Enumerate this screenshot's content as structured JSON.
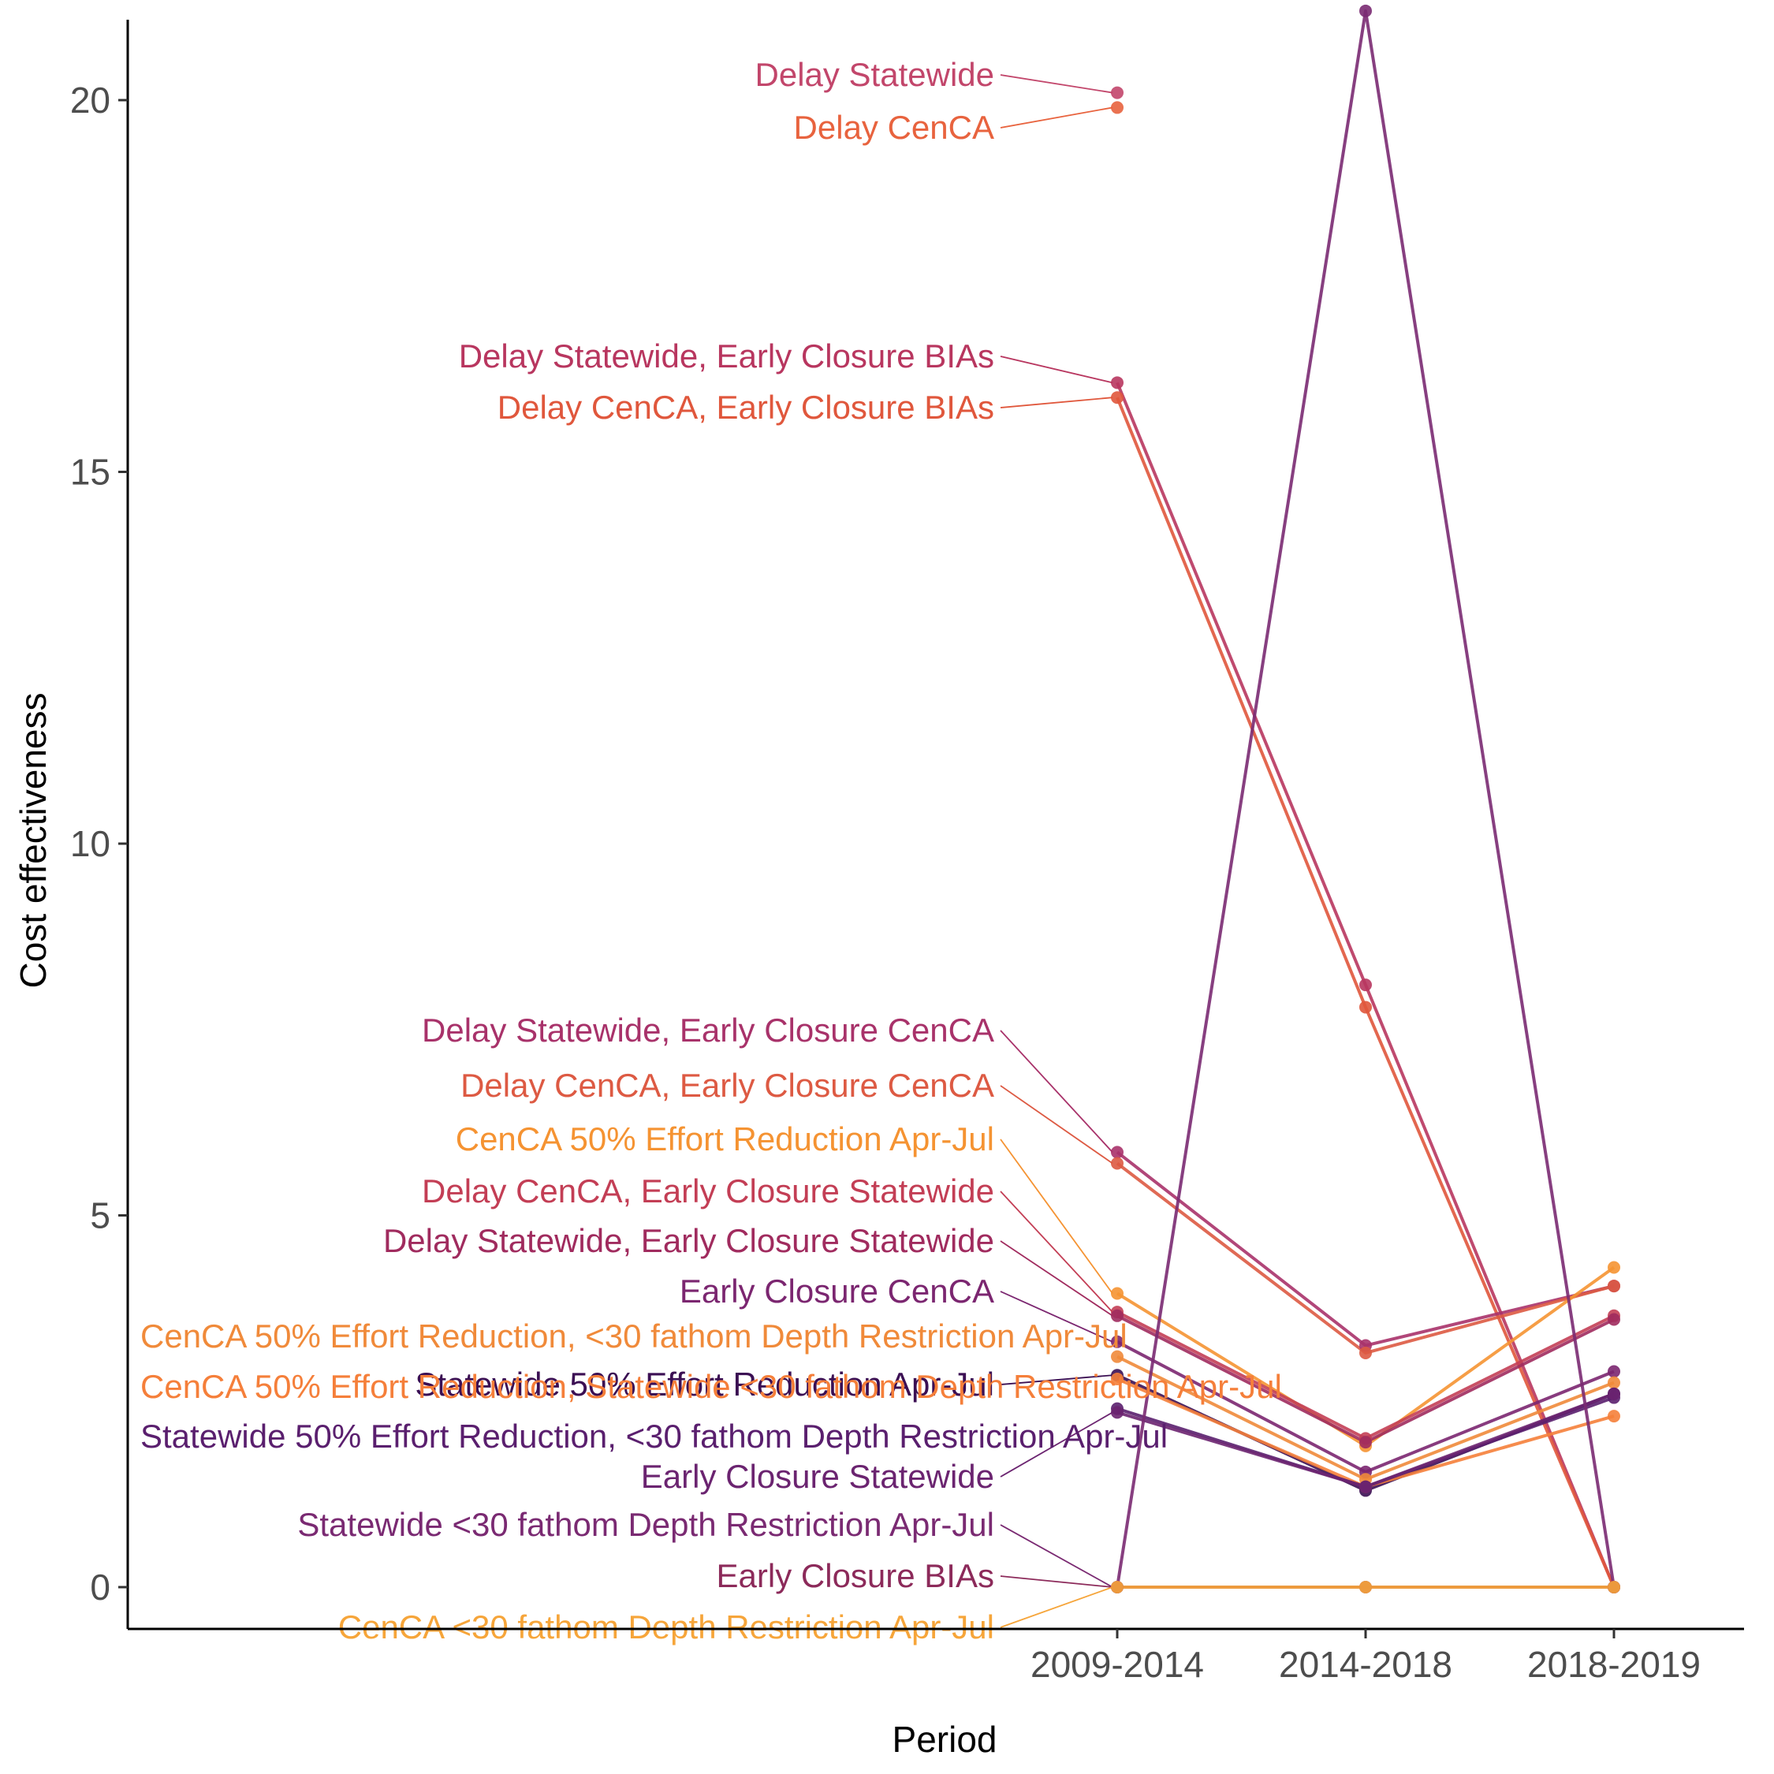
{
  "chart_data": {
    "type": "line",
    "xlabel": "Period",
    "ylabel": "Cost effectiveness",
    "categories": [
      "2009-2014",
      "2014-2018",
      "2018-2019"
    ],
    "ylim": [
      -0.95,
      21.1
    ],
    "yticks": [
      0,
      5,
      10,
      15,
      20
    ],
    "grid": false,
    "legend": "none",
    "series": [
      {
        "name": "Delay Statewide",
        "color": "#c2466b",
        "values": [
          20.1,
          null,
          null
        ]
      },
      {
        "name": "Delay CenCA",
        "color": "#e8633e",
        "values": [
          19.9,
          null,
          null
        ]
      },
      {
        "name": "Delay Statewide, Early Closure BIAs",
        "color": "#b8365f",
        "values": [
          16.2,
          8.1,
          0
        ]
      },
      {
        "name": "Delay CenCA, Early Closure BIAs",
        "color": "#e0573c",
        "values": [
          16.0,
          7.8,
          0
        ]
      },
      {
        "name": "Delay Statewide, Early Closure CenCA",
        "color": "#a8326a",
        "values": [
          5.85,
          3.25,
          4.05
        ]
      },
      {
        "name": "Delay CenCA, Early Closure CenCA",
        "color": "#dd5a43",
        "values": [
          5.7,
          3.15,
          4.05
        ]
      },
      {
        "name": "CenCA 50% Effort Reduction Apr-Jul",
        "color": "#f59332",
        "values": [
          3.95,
          1.9,
          4.3
        ]
      },
      {
        "name": "Delay CenCA, Early Closure Statewide",
        "color": "#c33e55",
        "values": [
          3.7,
          2.0,
          3.65
        ]
      },
      {
        "name": "Delay Statewide, Early Closure Statewide",
        "color": "#a02b5e",
        "values": [
          3.65,
          1.95,
          3.6
        ]
      },
      {
        "name": "Early Closure CenCA",
        "color": "#7b2670",
        "values": [
          3.3,
          1.55,
          2.9
        ]
      },
      {
        "name": "CenCA 50% Effort Reduction, <30 fathom Depth Restriction Apr-Jul",
        "color": "#f08a3a",
        "values": [
          3.1,
          1.45,
          2.75
        ]
      },
      {
        "name": "Statewide 50% Effort Reduction Apr-Jul",
        "color": "#3b0f53",
        "values": [
          2.85,
          1.3,
          2.6
        ]
      },
      {
        "name": "CenCA 50% Effort Reduction, Statewide <30 fathom Depth Restriction Apr-Jul",
        "color": "#f57f3a",
        "values": [
          2.8,
          1.35,
          2.3
        ]
      },
      {
        "name": "Statewide 50% Effort Reduction, <30 fathom Depth Restriction Apr-Jul",
        "color": "#5a1f6e",
        "values": [
          2.4,
          1.35,
          2.55
        ]
      },
      {
        "name": "Early Closure Statewide",
        "color": "#6b2470",
        "values": [
          2.35,
          1.35,
          2.6
        ]
      },
      {
        "name": "Statewide <30 fathom Depth Restriction Apr-Jul",
        "color": "#7a2a72",
        "values": [
          0,
          21.2,
          0
        ]
      },
      {
        "name": "Early Closure BIAs",
        "color": "#8c2a5a",
        "values": [
          0,
          0,
          0
        ]
      },
      {
        "name": "CenCA <30 fathom Depth Restriction Apr-Jul",
        "color": "#f6a53a",
        "values": [
          0,
          0,
          0
        ]
      }
    ]
  }
}
